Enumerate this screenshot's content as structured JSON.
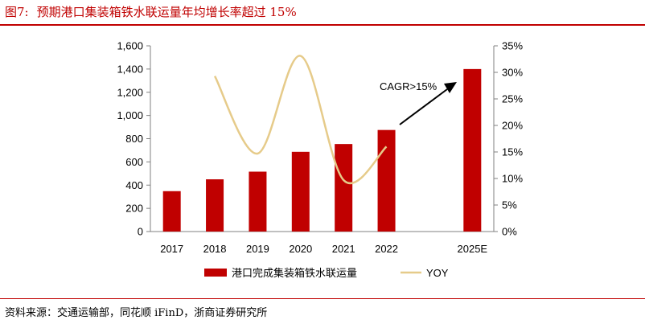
{
  "header": {
    "figure_label": "图7:",
    "title": "预期港口集装箱铁水联运量年均增长率超过 15%"
  },
  "footer": {
    "source": "资料来源：交通运输部，同花顺 iFinD，浙商证券研究所"
  },
  "chart_data": {
    "type": "bar",
    "title": "预期港口集装箱铁水联运量年均增长率超过 15%",
    "categories": [
      "2017",
      "2018",
      "2019",
      "2020",
      "2021",
      "2022",
      "",
      "2025E"
    ],
    "series": [
      {
        "name": "港口完成集装箱铁水联运量",
        "type": "bar",
        "axis": "left",
        "color": "#c00000",
        "values": [
          348,
          450,
          516,
          687,
          754,
          875,
          null,
          1400
        ]
      },
      {
        "name": "YOY",
        "type": "line",
        "axis": "right",
        "color": "#e6cb8a",
        "values": [
          null,
          0.293,
          0.147,
          0.331,
          0.097,
          0.16,
          null,
          null
        ]
      }
    ],
    "left_axis": {
      "min": 0,
      "max": 1600,
      "step": 200,
      "tick_labels": [
        "0",
        "200",
        "400",
        "600",
        "800",
        "1,000",
        "1,200",
        "1,400",
        "1,600"
      ]
    },
    "right_axis": {
      "min": 0,
      "max": 0.35,
      "step": 0.05,
      "tick_labels": [
        "0%",
        "5%",
        "10%",
        "15%",
        "20%",
        "25%",
        "30%",
        "35%"
      ]
    },
    "annotation": {
      "text": "CAGR>15%"
    },
    "legend": {
      "position": "bottom"
    }
  }
}
